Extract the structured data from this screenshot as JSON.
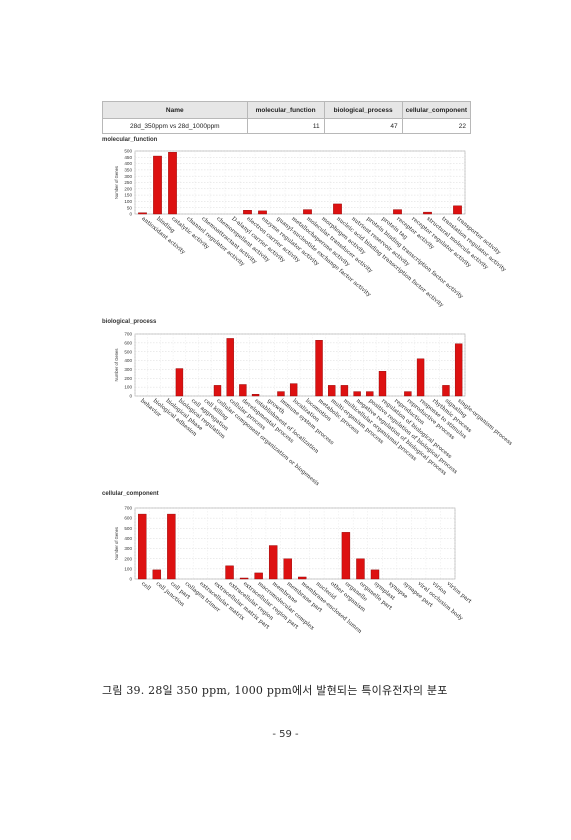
{
  "table": {
    "headers": [
      "Name",
      "molecular_function",
      "biological_process",
      "cellular_component"
    ],
    "rows": [
      [
        "28d_350ppm vs 28d_1000ppm",
        "11",
        "47",
        "22"
      ]
    ]
  },
  "charts_meta": {
    "ylabel": "Number of Genes",
    "bar_color": "#dd1111"
  },
  "chart_data": [
    {
      "type": "bar",
      "title": "molecular_function",
      "ylabel": "Number of Genes",
      "ylim": [
        0,
        500
      ],
      "yticks": [
        0,
        50,
        100,
        150,
        200,
        250,
        300,
        350,
        400,
        450,
        500
      ],
      "grid": true,
      "categories": [
        "antioxidant activity",
        "binding",
        "catalytic activity",
        "channel regulator activity",
        "chemoattractant activity",
        "chemorepellent activity",
        "D-alanyl carrier activity",
        "electron carrier activity",
        "enzyme regulator activity",
        "guanyl-nucleotide exchange factor activity",
        "metallochaperone activity",
        "molecular transducer activity",
        "morphogen activity",
        "nucleic acid binding transcription factor activity",
        "nutrient reservoir activity",
        "protein binding transcription factor activity",
        "protein tag",
        "receptor activity",
        "receptor regulator activity",
        "structural molecule activity",
        "translation regulator activity",
        "transporter activity"
      ],
      "values": [
        10,
        460,
        490,
        0,
        0,
        0,
        0,
        30,
        25,
        0,
        0,
        35,
        0,
        80,
        0,
        0,
        0,
        35,
        0,
        15,
        0,
        65
      ]
    },
    {
      "type": "bar",
      "title": "biological_process",
      "ylabel": "Number of Genes",
      "ylim": [
        0,
        700
      ],
      "yticks": [
        0,
        100,
        200,
        300,
        400,
        500,
        600,
        700
      ],
      "grid": true,
      "categories": [
        "behavior",
        "biological adhesion",
        "biological phase",
        "biological regulation",
        "cell aggregation",
        "cell killing",
        "cellular component organization or biogenesis",
        "cellular process",
        "developmental process",
        "establishment of localization",
        "growth",
        "immune system process",
        "localization",
        "locomotion",
        "metabolic process",
        "multi-organism process",
        "multicellular organismal process",
        "negative regulation of biological process",
        "positive regulation of biological process",
        "regulation of biological process",
        "reproduction",
        "reproductive process",
        "response to stimulus",
        "rhythmic process",
        "signaling",
        "single-organism process"
      ],
      "values": [
        0,
        0,
        0,
        310,
        0,
        0,
        120,
        650,
        130,
        20,
        0,
        50,
        140,
        0,
        630,
        120,
        120,
        50,
        50,
        280,
        0,
        50,
        420,
        0,
        120,
        590
      ]
    },
    {
      "type": "bar",
      "title": "cellular_component",
      "ylabel": "Number of Genes",
      "ylim": [
        0,
        700
      ],
      "yticks": [
        0,
        100,
        200,
        300,
        400,
        500,
        600,
        700
      ],
      "grid": true,
      "categories": [
        "cell",
        "cell junction",
        "cell part",
        "collagen trimer",
        "extracellular matrix",
        "extracellular matrix part",
        "extracellular region",
        "extracellular region part",
        "macromolecular complex",
        "membrane",
        "membrane part",
        "membrane-enclosed lumen",
        "nucleoid",
        "other organism",
        "organelle",
        "organelle part",
        "symplast",
        "synapse",
        "synapse part",
        "viral occlusion body",
        "virion",
        "virion part"
      ],
      "values": [
        640,
        90,
        640,
        0,
        0,
        0,
        130,
        10,
        60,
        330,
        200,
        20,
        0,
        0,
        460,
        200,
        90,
        0,
        0,
        0,
        0,
        0
      ]
    }
  ],
  "caption": "그림 39. 28일 350 ppm, 1000 ppm에서 발현되는 특이유전자의 분포",
  "page_number": "- 59 -"
}
